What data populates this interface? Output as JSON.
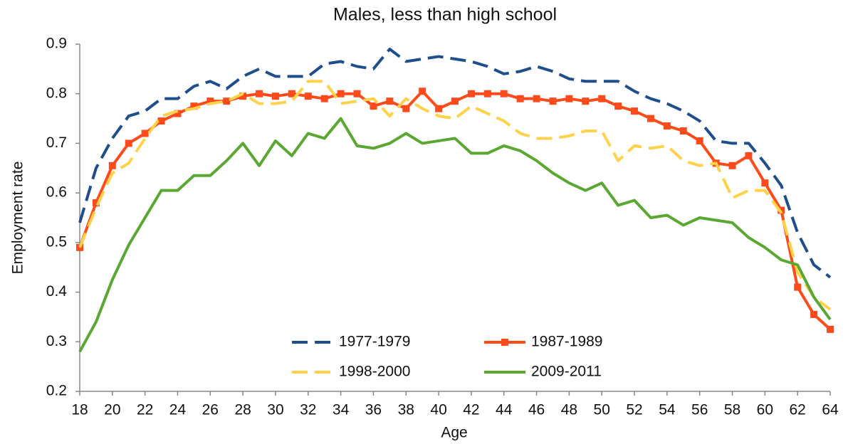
{
  "chart_data": {
    "type": "line",
    "title": "Males, less than high school",
    "x_label": "Age",
    "y_label": "Employment rate",
    "x": [
      18,
      19,
      20,
      21,
      22,
      23,
      24,
      25,
      26,
      27,
      28,
      29,
      30,
      31,
      32,
      33,
      34,
      35,
      36,
      37,
      38,
      39,
      40,
      41,
      42,
      43,
      44,
      45,
      46,
      47,
      48,
      49,
      50,
      51,
      52,
      53,
      54,
      55,
      56,
      57,
      58,
      59,
      60,
      61,
      62,
      63,
      64
    ],
    "xlim": [
      18,
      64
    ],
    "xticks": [
      18,
      20,
      22,
      24,
      26,
      28,
      30,
      32,
      34,
      36,
      38,
      40,
      42,
      44,
      46,
      48,
      50,
      52,
      54,
      56,
      58,
      60,
      62,
      64
    ],
    "ylim": [
      0.2,
      0.9
    ],
    "yticks": [
      0.2,
      0.3,
      0.4,
      0.5,
      0.6,
      0.7,
      0.8,
      0.9
    ],
    "grid": false,
    "series": [
      {
        "name": "1977-1979",
        "color": "#1f4e8c",
        "dash": true,
        "values": [
          0.54,
          0.65,
          0.71,
          0.755,
          0.765,
          0.79,
          0.79,
          0.815,
          0.825,
          0.81,
          0.835,
          0.85,
          0.835,
          0.835,
          0.835,
          0.86,
          0.865,
          0.855,
          0.85,
          0.89,
          0.865,
          0.87,
          0.875,
          0.87,
          0.865,
          0.855,
          0.84,
          0.845,
          0.855,
          0.845,
          0.83,
          0.825,
          0.825,
          0.825,
          0.805,
          0.79,
          0.78,
          0.765,
          0.745,
          0.705,
          0.7,
          0.7,
          0.66,
          0.615,
          0.52,
          0.455,
          0.43
        ]
      },
      {
        "name": "1987-1989",
        "color": "#ff4a1c",
        "marker": "square",
        "values": [
          0.49,
          0.58,
          0.655,
          0.7,
          0.72,
          0.745,
          0.76,
          0.775,
          0.785,
          0.785,
          0.795,
          0.8,
          0.795,
          0.8,
          0.795,
          0.79,
          0.8,
          0.8,
          0.775,
          0.785,
          0.77,
          0.805,
          0.77,
          0.785,
          0.8,
          0.8,
          0.8,
          0.79,
          0.79,
          0.785,
          0.79,
          0.785,
          0.79,
          0.775,
          0.765,
          0.75,
          0.735,
          0.725,
          0.705,
          0.66,
          0.655,
          0.675,
          0.62,
          0.565,
          0.41,
          0.355,
          0.325
        ]
      },
      {
        "name": "1998-2000",
        "color": "#ffd24a",
        "dash": true,
        "values": [
          0.49,
          0.57,
          0.64,
          0.66,
          0.71,
          0.755,
          0.765,
          0.77,
          0.78,
          0.785,
          0.8,
          0.78,
          0.78,
          0.785,
          0.825,
          0.825,
          0.78,
          0.785,
          0.79,
          0.755,
          0.79,
          0.77,
          0.755,
          0.75,
          0.775,
          0.76,
          0.745,
          0.72,
          0.71,
          0.71,
          0.715,
          0.725,
          0.725,
          0.665,
          0.695,
          0.69,
          0.695,
          0.665,
          0.655,
          0.66,
          0.59,
          0.605,
          0.605,
          0.56,
          0.44,
          0.39,
          0.365
        ]
      },
      {
        "name": "2009-2011",
        "color": "#5aa832",
        "values": [
          0.28,
          0.34,
          0.425,
          0.495,
          0.55,
          0.605,
          0.605,
          0.635,
          0.635,
          0.665,
          0.7,
          0.655,
          0.705,
          0.675,
          0.72,
          0.71,
          0.75,
          0.695,
          0.69,
          0.7,
          0.72,
          0.7,
          0.705,
          0.71,
          0.68,
          0.68,
          0.695,
          0.685,
          0.665,
          0.64,
          0.62,
          0.605,
          0.62,
          0.575,
          0.585,
          0.55,
          0.555,
          0.535,
          0.55,
          0.545,
          0.54,
          0.51,
          0.49,
          0.465,
          0.455,
          0.39,
          0.345
        ]
      }
    ]
  }
}
